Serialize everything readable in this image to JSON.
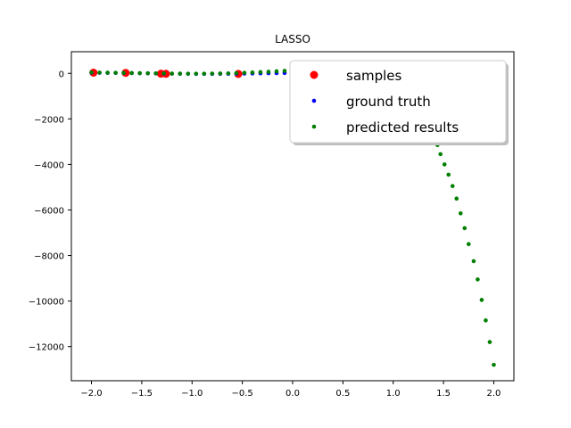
{
  "chart_data": {
    "type": "scatter",
    "title": "LASSO",
    "xlabel": "",
    "ylabel": "",
    "xlim": [
      -2.2,
      2.2
    ],
    "ylim": [
      -13500,
      950
    ],
    "xticks": [
      -2.0,
      -1.5,
      -1.0,
      -0.5,
      0.0,
      0.5,
      1.0,
      1.5,
      2.0
    ],
    "xtick_labels": [
      "−2.0",
      "−1.5",
      "−1.0",
      "−0.5",
      "0.0",
      "0.5",
      "1.0",
      "1.5",
      "2.0"
    ],
    "yticks": [
      0,
      -2000,
      -4000,
      -6000,
      -8000,
      -10000,
      -12000
    ],
    "ytick_labels": [
      "0",
      "−2000",
      "−4000",
      "−6000",
      "−8000",
      "−10000",
      "−12000"
    ],
    "grid": false,
    "legend_position": "top-right",
    "series": [
      {
        "name": "samples",
        "color": "#ff0000",
        "marker": "large-dot",
        "x": [
          -1.98,
          -1.66,
          -1.31,
          -1.26,
          -0.54
        ],
        "y": [
          30,
          20,
          -15,
          -20,
          -25
        ]
      },
      {
        "name": "ground truth",
        "color": "#0000ff",
        "marker": "small-dot",
        "x": [
          -2.0,
          -1.92,
          -1.84,
          -1.76,
          -1.68,
          -1.6,
          -1.52,
          -1.44,
          -1.36,
          -1.28,
          -1.2,
          -1.12,
          -1.04,
          -0.96,
          -0.88,
          -0.8,
          -0.72,
          -0.64,
          -0.56,
          -0.48,
          -0.4,
          -0.32,
          -0.24,
          -0.16,
          -0.08,
          0.0
        ],
        "y": [
          30,
          25,
          22,
          18,
          14,
          10,
          5,
          0,
          -5,
          -10,
          -15,
          -18,
          -20,
          -22,
          -22,
          -22,
          -20,
          -18,
          -15,
          -10,
          -5,
          0,
          5,
          10,
          15,
          20
        ]
      },
      {
        "name": "predicted results",
        "color": "#008000",
        "marker": "small-dot",
        "x": [
          -2.0,
          -1.92,
          -1.84,
          -1.76,
          -1.68,
          -1.6,
          -1.52,
          -1.44,
          -1.36,
          -1.28,
          -1.2,
          -1.12,
          -1.04,
          -0.96,
          -0.88,
          -0.8,
          -0.72,
          -0.64,
          -0.56,
          -0.48,
          -0.4,
          -0.32,
          -0.24,
          -0.16,
          -0.08,
          0.0,
          1.44,
          1.47,
          1.51,
          1.55,
          1.59,
          1.63,
          1.67,
          1.71,
          1.75,
          1.8,
          1.84,
          1.88,
          1.92,
          1.96,
          2.0
        ],
        "y": [
          40,
          35,
          30,
          25,
          20,
          15,
          10,
          5,
          0,
          -5,
          -10,
          -12,
          -15,
          -15,
          -15,
          -10,
          -5,
          0,
          10,
          25,
          40,
          55,
          70,
          90,
          110,
          130,
          -3150,
          -3550,
          -4000,
          -4450,
          -4950,
          -5500,
          -6150,
          -6800,
          -7500,
          -8250,
          -9050,
          -9950,
          -10850,
          -11800,
          -12800
        ]
      }
    ]
  }
}
